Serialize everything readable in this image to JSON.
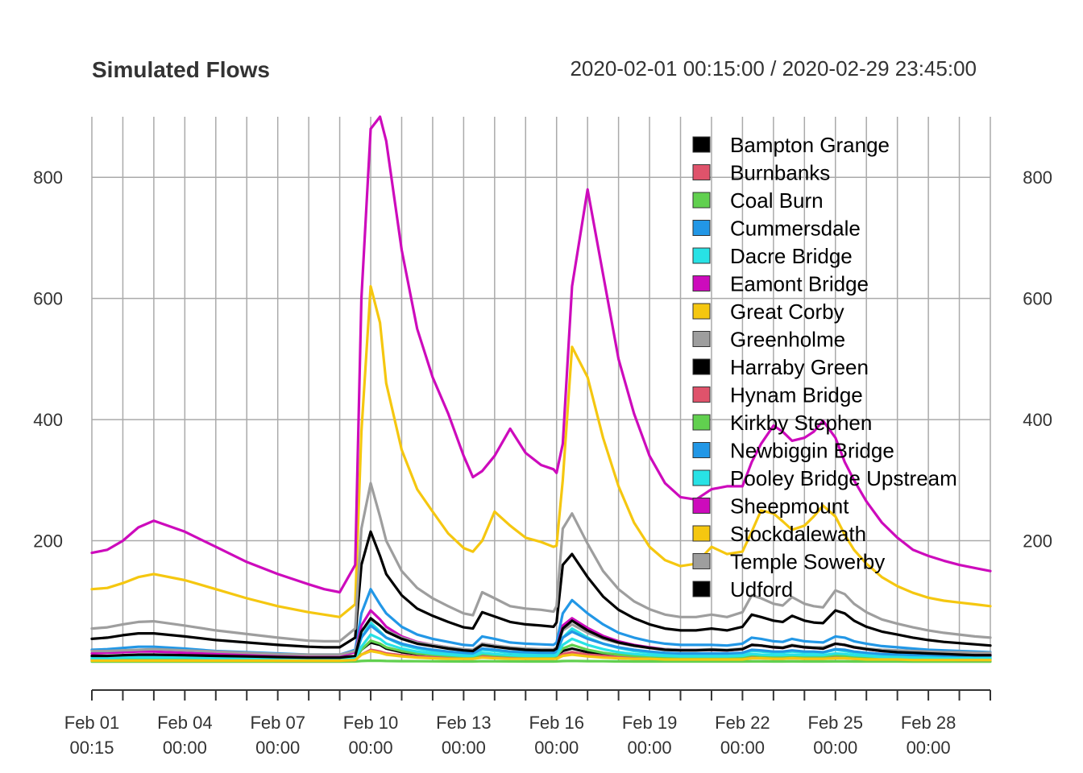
{
  "chart_data": {
    "type": "line",
    "title": "Simulated Flows",
    "date_range": "2020-02-01 00:15:00 / 2020-02-29 23:45:00",
    "xlabel": "",
    "ylabel": "",
    "ylim": [
      0,
      900
    ],
    "y_ticks": [
      200,
      400,
      600,
      800
    ],
    "x_ticks": [
      {
        "day": 1,
        "line1": "Feb 01",
        "line2": "00:15"
      },
      {
        "day": 4,
        "line1": "Feb 04",
        "line2": "00:00"
      },
      {
        "day": 7,
        "line1": "Feb 07",
        "line2": "00:00"
      },
      {
        "day": 10,
        "line1": "Feb 10",
        "line2": "00:00"
      },
      {
        "day": 13,
        "line1": "Feb 13",
        "line2": "00:00"
      },
      {
        "day": 16,
        "line1": "Feb 16",
        "line2": "00:00"
      },
      {
        "day": 19,
        "line1": "Feb 19",
        "line2": "00:00"
      },
      {
        "day": 22,
        "line1": "Feb 22",
        "line2": "00:00"
      },
      {
        "day": 25,
        "line1": "Feb 25",
        "line2": "00:00"
      },
      {
        "day": 28,
        "line1": "Feb 28",
        "line2": "00:00"
      }
    ],
    "x_unit": "day of February 2020",
    "x": [
      1,
      1.5,
      2,
      2.5,
      3,
      4,
      5,
      6,
      7,
      8,
      8.5,
      9,
      9.5,
      9.7,
      10,
      10.3,
      10.5,
      11,
      11.5,
      12,
      12.5,
      13,
      13.3,
      13.6,
      14,
      14.5,
      15,
      15.5,
      15.9,
      16,
      16.2,
      16.5,
      17,
      17.5,
      18,
      18.5,
      19,
      19.5,
      20,
      20.5,
      21,
      21.5,
      22,
      22.3,
      22.6,
      23,
      23.3,
      23.6,
      24,
      24.3,
      24.6,
      25,
      25.3,
      25.6,
      26,
      26.5,
      27,
      27.5,
      28,
      28.5,
      29,
      29.5,
      30
    ],
    "legend_position": "top-right",
    "grid": true,
    "series": [
      {
        "name": "Bampton Grange",
        "color": "#000000",
        "values": [
          5,
          5,
          6,
          6,
          6,
          5,
          5,
          4,
          4,
          4,
          4,
          4,
          5,
          20,
          32,
          28,
          22,
          16,
          13,
          12,
          11,
          10,
          9,
          14,
          12,
          11,
          10,
          10,
          9,
          10,
          18,
          22,
          16,
          13,
          11,
          10,
          9,
          9,
          9,
          9,
          9,
          9,
          9,
          12,
          11,
          10,
          10,
          11,
          10,
          10,
          10,
          12,
          11,
          10,
          9,
          8,
          7,
          7,
          7,
          6,
          6,
          6,
          6
        ]
      },
      {
        "name": "Burnbanks",
        "color": "#DF536B",
        "values": [
          2,
          2,
          2,
          2,
          2,
          2,
          2,
          2,
          2,
          2,
          2,
          2,
          3,
          12,
          18,
          16,
          13,
          10,
          8,
          7,
          6,
          5,
          5,
          8,
          7,
          6,
          5,
          5,
          5,
          6,
          11,
          14,
          10,
          8,
          6,
          5,
          5,
          4,
          4,
          4,
          4,
          4,
          4,
          6,
          6,
          5,
          5,
          6,
          5,
          5,
          5,
          6,
          6,
          5,
          4,
          4,
          4,
          3,
          3,
          3,
          3,
          3,
          3
        ]
      },
      {
        "name": "Coal Burn",
        "color": "#61D04F",
        "values": [
          0.5,
          0.5,
          0.5,
          0.5,
          0.5,
          0.5,
          0.5,
          0.5,
          0.5,
          0.5,
          0.5,
          0.5,
          0.6,
          1.5,
          2,
          1.8,
          1.5,
          1.2,
          1,
          0.9,
          0.8,
          0.7,
          0.7,
          1,
          0.9,
          0.8,
          0.7,
          0.7,
          0.7,
          0.8,
          1.3,
          1.6,
          1.2,
          1,
          0.8,
          0.7,
          0.7,
          0.6,
          0.6,
          0.6,
          0.6,
          0.6,
          0.6,
          0.8,
          0.8,
          0.7,
          0.7,
          0.8,
          0.7,
          0.7,
          0.7,
          0.8,
          0.8,
          0.7,
          0.6,
          0.6,
          0.6,
          0.5,
          0.5,
          0.5,
          0.5,
          0.5,
          0.5
        ]
      },
      {
        "name": "Cummersdale",
        "color": "#2297E6",
        "values": [
          20,
          21,
          23,
          25,
          25,
          22,
          18,
          16,
          14,
          12,
          12,
          12,
          20,
          80,
          120,
          95,
          80,
          58,
          45,
          38,
          33,
          28,
          27,
          42,
          38,
          32,
          30,
          29,
          28,
          32,
          80,
          102,
          80,
          62,
          48,
          40,
          34,
          30,
          28,
          28,
          28,
          27,
          30,
          40,
          38,
          34,
          33,
          38,
          34,
          33,
          32,
          42,
          40,
          34,
          30,
          26,
          24,
          22,
          20,
          19,
          18,
          17,
          16
        ]
      },
      {
        "name": "Dacre Bridge",
        "color": "#28E2E5",
        "values": [
          8,
          8,
          9,
          10,
          10,
          9,
          8,
          7,
          6,
          5,
          5,
          5,
          8,
          40,
          65,
          50,
          40,
          28,
          22,
          18,
          15,
          13,
          12,
          20,
          18,
          15,
          14,
          13,
          13,
          15,
          40,
          55,
          40,
          30,
          23,
          18,
          15,
          13,
          12,
          12,
          12,
          12,
          13,
          18,
          17,
          15,
          15,
          17,
          15,
          15,
          15,
          20,
          18,
          15,
          13,
          11,
          10,
          9,
          9,
          8,
          8,
          7,
          7
        ]
      },
      {
        "name": "Eamont Bridge",
        "color": "#CD0BBC",
        "values": [
          14,
          15,
          16,
          17,
          17,
          15,
          13,
          12,
          11,
          10,
          10,
          10,
          16,
          60,
          85,
          70,
          58,
          42,
          33,
          28,
          24,
          20,
          19,
          30,
          27,
          23,
          21,
          20,
          19,
          22,
          60,
          72,
          56,
          43,
          34,
          28,
          24,
          21,
          20,
          20,
          20,
          19,
          21,
          28,
          27,
          24,
          23,
          27,
          24,
          23,
          22,
          30,
          28,
          24,
          21,
          18,
          17,
          16,
          15,
          14,
          13,
          12,
          12
        ]
      },
      {
        "name": "Great Corby",
        "color": "#F5C710",
        "values": [
          120,
          122,
          130,
          140,
          145,
          135,
          120,
          105,
          92,
          82,
          78,
          74,
          95,
          380,
          620,
          560,
          460,
          350,
          285,
          248,
          212,
          188,
          182,
          200,
          248,
          225,
          205,
          198,
          190,
          192,
          300,
          520,
          470,
          370,
          290,
          230,
          190,
          168,
          158,
          162,
          190,
          178,
          182,
          215,
          250,
          245,
          232,
          218,
          225,
          240,
          258,
          240,
          210,
          185,
          162,
          140,
          125,
          114,
          106,
          101,
          98,
          95,
          92
        ]
      },
      {
        "name": "Greenholme",
        "color": "#9E9E9E",
        "values": [
          18,
          18,
          19,
          20,
          21,
          19,
          17,
          15,
          13,
          12,
          12,
          12,
          18,
          50,
          70,
          60,
          52,
          40,
          32,
          28,
          24,
          21,
          20,
          30,
          27,
          24,
          22,
          21,
          21,
          24,
          52,
          62,
          48,
          38,
          31,
          26,
          23,
          21,
          20,
          20,
          21,
          20,
          22,
          28,
          27,
          25,
          24,
          28,
          25,
          24,
          24,
          30,
          28,
          25,
          22,
          20,
          19,
          18,
          17,
          16,
          16,
          15,
          15
        ]
      },
      {
        "name": "Harraby Green",
        "color": "#000000",
        "values": [
          38,
          40,
          44,
          47,
          47,
          42,
          36,
          32,
          28,
          25,
          24,
          24,
          40,
          160,
          215,
          175,
          145,
          110,
          88,
          76,
          66,
          57,
          55,
          82,
          75,
          66,
          62,
          60,
          58,
          65,
          160,
          178,
          140,
          108,
          86,
          72,
          62,
          55,
          52,
          52,
          55,
          52,
          58,
          78,
          74,
          68,
          66,
          76,
          68,
          65,
          64,
          85,
          80,
          68,
          58,
          50,
          45,
          40,
          36,
          33,
          31,
          29,
          27
        ]
      },
      {
        "name": "Hynam Bridge",
        "color": "#DF536B",
        "values": [
          3,
          3,
          3,
          3,
          3,
          3,
          3,
          3,
          2,
          2,
          2,
          2,
          3,
          12,
          20,
          17,
          14,
          11,
          9,
          8,
          7,
          6,
          6,
          9,
          8,
          7,
          6,
          6,
          6,
          7,
          13,
          16,
          12,
          10,
          8,
          7,
          6,
          5,
          5,
          5,
          5,
          5,
          5,
          7,
          7,
          6,
          6,
          7,
          6,
          6,
          6,
          7,
          7,
          6,
          5,
          5,
          4,
          4,
          4,
          4,
          3,
          3,
          3
        ]
      },
      {
        "name": "Kirkby Stephen",
        "color": "#61D04F",
        "values": [
          4,
          4,
          5,
          5,
          5,
          5,
          4,
          4,
          3,
          3,
          3,
          3,
          4,
          20,
          35,
          30,
          24,
          18,
          14,
          12,
          10,
          9,
          8,
          13,
          11,
          10,
          9,
          9,
          8,
          10,
          22,
          28,
          20,
          15,
          12,
          10,
          9,
          8,
          8,
          8,
          8,
          8,
          8,
          11,
          10,
          9,
          9,
          10,
          9,
          9,
          9,
          11,
          10,
          9,
          8,
          7,
          6,
          6,
          5,
          5,
          5,
          5,
          5
        ]
      },
      {
        "name": "Newbiggin Bridge",
        "color": "#2297E6",
        "values": [
          9,
          9,
          10,
          11,
          11,
          10,
          9,
          8,
          7,
          6,
          6,
          6,
          9,
          40,
          60,
          48,
          40,
          30,
          24,
          20,
          17,
          15,
          14,
          22,
          20,
          17,
          16,
          15,
          15,
          17,
          40,
          50,
          38,
          30,
          24,
          20,
          17,
          15,
          14,
          14,
          14,
          14,
          15,
          20,
          19,
          17,
          17,
          19,
          17,
          17,
          16,
          21,
          20,
          17,
          15,
          13,
          12,
          11,
          10,
          10,
          9,
          9,
          9
        ]
      },
      {
        "name": "Pooley Bridge Upstream",
        "color": "#28E2E5",
        "values": [
          6,
          6,
          7,
          7,
          7,
          7,
          6,
          5,
          5,
          4,
          4,
          4,
          6,
          25,
          45,
          38,
          30,
          22,
          17,
          14,
          12,
          10,
          10,
          15,
          13,
          11,
          10,
          10,
          10,
          11,
          28,
          38,
          28,
          21,
          16,
          13,
          11,
          10,
          9,
          9,
          9,
          9,
          10,
          13,
          12,
          11,
          11,
          12,
          11,
          11,
          11,
          14,
          13,
          11,
          10,
          8,
          8,
          7,
          7,
          6,
          6,
          6,
          6
        ]
      },
      {
        "name": "Sheepmount",
        "color": "#CD0BBC",
        "values": [
          180,
          185,
          200,
          222,
          233,
          215,
          190,
          165,
          145,
          128,
          120,
          115,
          160,
          600,
          880,
          915,
          860,
          680,
          550,
          470,
          410,
          340,
          305,
          315,
          340,
          385,
          345,
          325,
          318,
          312,
          360,
          620,
          780,
          640,
          500,
          410,
          340,
          295,
          272,
          268,
          285,
          290,
          290,
          330,
          360,
          390,
          380,
          365,
          370,
          380,
          398,
          370,
          330,
          300,
          265,
          230,
          205,
          185,
          175,
          167,
          160,
          155,
          150
        ]
      },
      {
        "name": "Stockdalewath",
        "color": "#F5C710",
        "values": [
          2,
          2,
          2,
          2,
          2,
          2,
          2,
          2,
          2,
          2,
          2,
          2,
          3,
          12,
          18,
          15,
          12,
          9,
          7,
          6,
          5,
          5,
          5,
          7,
          6,
          5,
          5,
          5,
          5,
          5,
          10,
          12,
          9,
          7,
          6,
          5,
          5,
          4,
          4,
          4,
          4,
          4,
          4,
          6,
          6,
          5,
          5,
          6,
          5,
          5,
          5,
          6,
          6,
          5,
          4,
          4,
          4,
          3,
          3,
          3,
          3,
          3,
          3
        ]
      },
      {
        "name": "Temple Sowerby",
        "color": "#9E9E9E",
        "values": [
          55,
          57,
          62,
          66,
          67,
          60,
          52,
          46,
          40,
          35,
          34,
          34,
          55,
          220,
          295,
          240,
          200,
          150,
          122,
          105,
          92,
          80,
          77,
          115,
          105,
          92,
          88,
          86,
          83,
          92,
          220,
          245,
          195,
          150,
          120,
          100,
          87,
          78,
          74,
          74,
          78,
          74,
          82,
          110,
          105,
          96,
          93,
          107,
          96,
          92,
          90,
          118,
          112,
          96,
          82,
          70,
          63,
          57,
          52,
          48,
          45,
          42,
          40
        ]
      },
      {
        "name": "Udford",
        "color": "#000000",
        "values": [
          10,
          10,
          11,
          12,
          12,
          11,
          10,
          9,
          8,
          7,
          7,
          7,
          10,
          50,
          72,
          60,
          50,
          38,
          30,
          26,
          22,
          19,
          18,
          28,
          25,
          22,
          20,
          19,
          19,
          22,
          55,
          68,
          52,
          40,
          32,
          27,
          23,
          20,
          19,
          19,
          20,
          19,
          21,
          28,
          27,
          24,
          23,
          27,
          24,
          23,
          22,
          30,
          28,
          24,
          21,
          18,
          16,
          15,
          14,
          13,
          12,
          11,
          11
        ]
      }
    ]
  }
}
